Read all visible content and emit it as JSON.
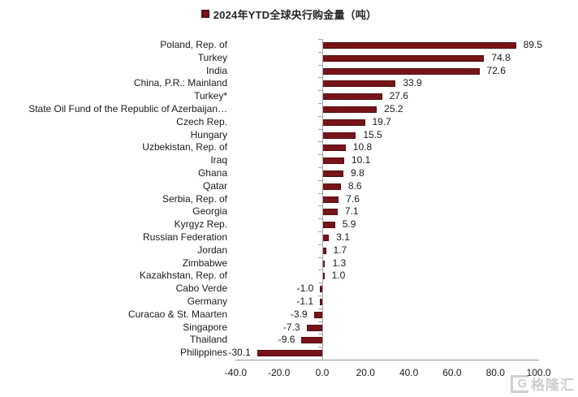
{
  "legend": {
    "label": "2024年YTD全球央行购金量（吨）"
  },
  "watermark": {
    "logo": "G",
    "text": "格隆汇"
  },
  "chart_data": {
    "type": "bar",
    "orientation": "horizontal",
    "title": "2024年YTD全球央行购金量（吨）",
    "categories": [
      "Poland, Rep. of",
      "Turkey",
      "India",
      "China, P.R.: Mainland",
      "Turkey*",
      "State Oil Fund of the Republic of Azerbaijan…",
      "Czech Rep.",
      "Hungary",
      "Uzbekistan, Rep. of",
      "Iraq",
      "Ghana",
      "Qatar",
      "Serbia, Rep. of",
      "Georgia",
      "Kyrgyz Rep.",
      "Russian Federation",
      "Jordan",
      "Zimbabwe",
      "Kazakhstan, Rep. of",
      "Cabo Verde",
      "Germany",
      "Curacao & St. Maarten",
      "Singapore",
      "Thailand",
      "Philippines"
    ],
    "values": [
      89.5,
      74.8,
      72.6,
      33.9,
      27.6,
      25.2,
      19.7,
      15.5,
      10.8,
      10.1,
      9.8,
      8.6,
      7.6,
      7.1,
      5.9,
      3.1,
      1.7,
      1.3,
      1.0,
      -1.0,
      -1.1,
      -3.9,
      -7.3,
      -9.6,
      -30.1
    ],
    "value_labels": [
      "89.5",
      "74.8",
      "72.6",
      "33.9",
      "27.6",
      "25.2",
      "19.7",
      "15.5",
      "10.8",
      "10.1",
      "9.8",
      "8.6",
      "7.6",
      "7.1",
      "5.9",
      "3.1",
      "1.7",
      "1.3",
      "1.0",
      "-1.0",
      "-1.1",
      "-3.9",
      "-7.3",
      "-9.6",
      "-30.1"
    ],
    "x_ticks": {
      "values": [
        -40,
        -20,
        0,
        20,
        40,
        60,
        80,
        100
      ],
      "labels": [
        "-40.0",
        "-20.0",
        "0.0",
        "20.0",
        "40.0",
        "60.0",
        "80.0",
        "100.0"
      ]
    },
    "xlim": [
      -40,
      100
    ],
    "bar_color": "#76141a",
    "axis_color": "#a6a6a6",
    "grid": false,
    "legend_position": "top-center",
    "value_label_position": "outside-end"
  }
}
